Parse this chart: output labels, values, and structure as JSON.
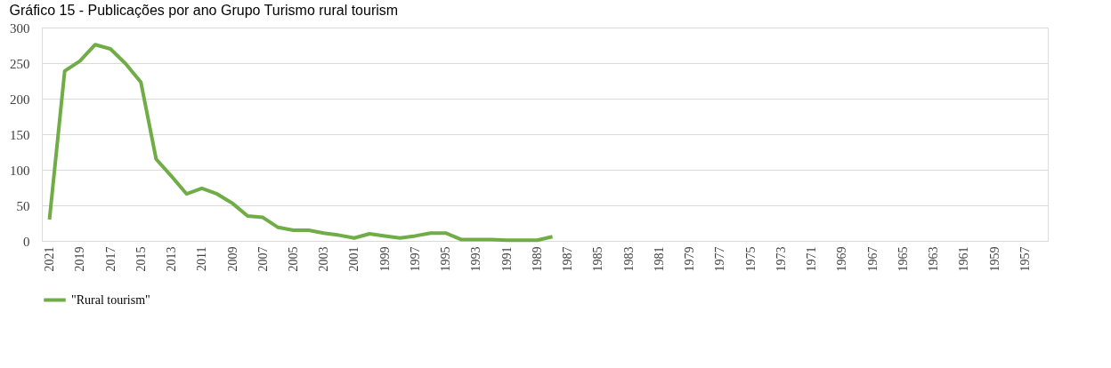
{
  "chart_data": {
    "type": "line",
    "title": "Gráfico 15 - Publicações por ano Grupo Turismo rural tourism",
    "categories": [
      "2021",
      null,
      "2019",
      null,
      "2017",
      null,
      "2015",
      null,
      "2013",
      null,
      "2011",
      null,
      "2009",
      null,
      "2007",
      null,
      "2005",
      null,
      "2003",
      null,
      "2001",
      null,
      "1999",
      null,
      "1997",
      null,
      "1995",
      null,
      "1993",
      null,
      "1991",
      null,
      "1989",
      null,
      "1987",
      null,
      "1985",
      null,
      "1983",
      null,
      "1981",
      null,
      "1979",
      null,
      "1977",
      null,
      "1975",
      null,
      "1973",
      null,
      "1971",
      null,
      "1969",
      null,
      "1967",
      null,
      "1965",
      null,
      "1963",
      null,
      "1961",
      null,
      "1959",
      null,
      "1957",
      null
    ],
    "series": [
      {
        "name": "\"Rural tourism\"",
        "color": "#70ad47",
        "values": [
          30,
          239,
          253,
          276,
          270,
          249,
          223,
          115,
          91,
          66,
          74,
          66,
          53,
          35,
          33,
          19,
          15,
          15,
          11,
          8,
          4,
          10,
          7,
          4,
          7,
          11,
          11,
          2,
          2,
          2,
          1,
          1,
          1,
          6,
          null,
          null,
          null,
          null,
          null,
          null,
          null,
          null,
          null,
          null,
          null,
          null,
          null,
          null,
          null,
          null,
          null,
          null,
          null,
          null,
          null,
          null,
          null,
          null,
          null,
          null,
          null,
          null,
          null,
          null,
          null,
          null
        ]
      }
    ],
    "ylim": [
      0,
      300
    ],
    "yticks": [
      0,
      50,
      100,
      150,
      200,
      250,
      300
    ],
    "grid": "y",
    "legend": "bottom",
    "marker": "none",
    "line_style": "solid"
  }
}
